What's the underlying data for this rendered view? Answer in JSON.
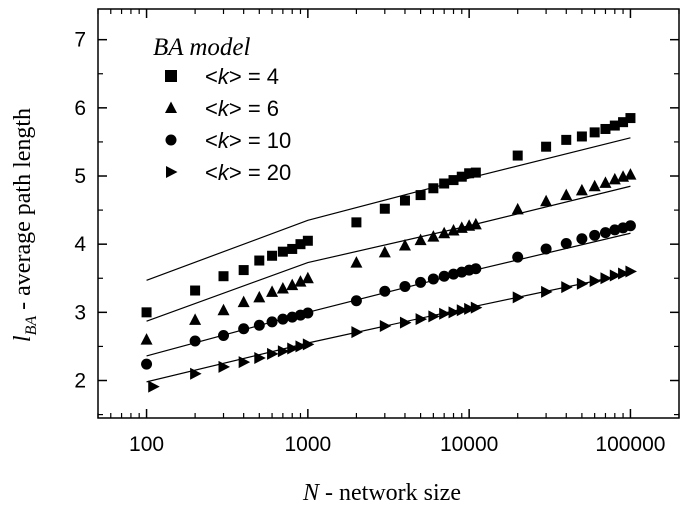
{
  "chart_data": {
    "type": "scatter",
    "title": "",
    "xlabel": "N - network size",
    "xlabel_parts": {
      "symbol": "N",
      "text": " - network size"
    },
    "ylabel": "l_BA - average path length",
    "ylabel_parts": {
      "symbol": "l",
      "subscript": "BA",
      "text": " - average path length"
    },
    "xscale": "log",
    "xlim": [
      50,
      200000
    ],
    "ylim": [
      1.45,
      7.45
    ],
    "x_ticks": [
      {
        "value": 100,
        "label": "100"
      },
      {
        "value": 1000,
        "label": "1000"
      },
      {
        "value": 10000,
        "label": "10000"
      },
      {
        "value": 100000,
        "label": "100000"
      }
    ],
    "y_ticks": [
      {
        "value": 2,
        "label": "2"
      },
      {
        "value": 3,
        "label": "3"
      },
      {
        "value": 4,
        "label": "4"
      },
      {
        "value": 5,
        "label": "5"
      },
      {
        "value": 6,
        "label": "6"
      },
      {
        "value": 7,
        "label": "7"
      }
    ],
    "grid": false,
    "legend": {
      "title": "BA model",
      "placement": "top-left"
    },
    "series": [
      {
        "name": "<k> = 4",
        "label_parts": [
          "<",
          "k",
          "> = 4"
        ],
        "marker": "square",
        "points": [
          [
            100,
            3.0
          ],
          [
            200,
            3.32
          ],
          [
            300,
            3.53
          ],
          [
            400,
            3.62
          ],
          [
            500,
            3.76
          ],
          [
            600,
            3.83
          ],
          [
            700,
            3.89
          ],
          [
            800,
            3.93
          ],
          [
            900,
            4.0
          ],
          [
            1000,
            4.05
          ],
          [
            2000,
            4.32
          ],
          [
            3000,
            4.52
          ],
          [
            4000,
            4.64
          ],
          [
            5000,
            4.72
          ],
          [
            6000,
            4.82
          ],
          [
            7000,
            4.89
          ],
          [
            8000,
            4.94
          ],
          [
            9000,
            4.99
          ],
          [
            10000,
            5.04
          ],
          [
            11000,
            5.05
          ],
          [
            20000,
            5.3
          ],
          [
            30000,
            5.43
          ],
          [
            40000,
            5.53
          ],
          [
            50000,
            5.58
          ],
          [
            60000,
            5.64
          ],
          [
            70000,
            5.69
          ],
          [
            80000,
            5.74
          ],
          [
            90000,
            5.79
          ],
          [
            100000,
            5.85
          ]
        ],
        "fit": [
          [
            100,
            3.47
          ],
          [
            1000,
            4.35
          ],
          [
            10000,
            4.97
          ],
          [
            100000,
            5.56
          ]
        ]
      },
      {
        "name": "<k> = 6",
        "label_parts": [
          "<",
          "k",
          "> = 6"
        ],
        "marker": "triangle-up",
        "points": [
          [
            100,
            2.6
          ],
          [
            200,
            2.89
          ],
          [
            300,
            3.03
          ],
          [
            400,
            3.15
          ],
          [
            500,
            3.22
          ],
          [
            600,
            3.3
          ],
          [
            700,
            3.35
          ],
          [
            800,
            3.4
          ],
          [
            900,
            3.45
          ],
          [
            1000,
            3.5
          ],
          [
            2000,
            3.73
          ],
          [
            3000,
            3.88
          ],
          [
            4000,
            3.98
          ],
          [
            5000,
            4.06
          ],
          [
            6000,
            4.11
          ],
          [
            7000,
            4.16
          ],
          [
            8000,
            4.2
          ],
          [
            9000,
            4.24
          ],
          [
            10000,
            4.27
          ],
          [
            11000,
            4.29
          ],
          [
            20000,
            4.51
          ],
          [
            30000,
            4.63
          ],
          [
            40000,
            4.72
          ],
          [
            50000,
            4.79
          ],
          [
            60000,
            4.85
          ],
          [
            70000,
            4.9
          ],
          [
            80000,
            4.95
          ],
          [
            90000,
            4.99
          ],
          [
            100000,
            5.02
          ]
        ],
        "fit": [
          [
            100,
            2.87
          ],
          [
            1000,
            3.73
          ],
          [
            10000,
            4.27
          ],
          [
            100000,
            4.85
          ]
        ]
      },
      {
        "name": "<k> = 10",
        "label_parts": [
          "<",
          "k",
          "> = 10"
        ],
        "marker": "circle",
        "points": [
          [
            100,
            2.24
          ],
          [
            200,
            2.58
          ],
          [
            300,
            2.66
          ],
          [
            400,
            2.76
          ],
          [
            500,
            2.81
          ],
          [
            600,
            2.86
          ],
          [
            700,
            2.9
          ],
          [
            800,
            2.93
          ],
          [
            900,
            2.96
          ],
          [
            1000,
            2.99
          ],
          [
            2000,
            3.17
          ],
          [
            3000,
            3.31
          ],
          [
            4000,
            3.38
          ],
          [
            5000,
            3.44
          ],
          [
            6000,
            3.49
          ],
          [
            7000,
            3.53
          ],
          [
            8000,
            3.56
          ],
          [
            9000,
            3.59
          ],
          [
            10000,
            3.62
          ],
          [
            11000,
            3.64
          ],
          [
            20000,
            3.81
          ],
          [
            30000,
            3.93
          ],
          [
            40000,
            4.01
          ],
          [
            50000,
            4.08
          ],
          [
            60000,
            4.13
          ],
          [
            70000,
            4.17
          ],
          [
            80000,
            4.21
          ],
          [
            90000,
            4.24
          ],
          [
            100000,
            4.27
          ]
        ],
        "fit": [
          [
            100,
            2.36
          ],
          [
            1000,
            3.0
          ],
          [
            10000,
            3.6
          ],
          [
            100000,
            4.16
          ]
        ]
      },
      {
        "name": "<k> = 20",
        "label_parts": [
          "<",
          "k",
          "> = 20"
        ],
        "marker": "triangle-right",
        "points": [
          [
            110,
            1.91
          ],
          [
            200,
            2.1
          ],
          [
            300,
            2.2
          ],
          [
            400,
            2.27
          ],
          [
            500,
            2.33
          ],
          [
            600,
            2.39
          ],
          [
            700,
            2.43
          ],
          [
            800,
            2.47
          ],
          [
            900,
            2.5
          ],
          [
            1000,
            2.53
          ],
          [
            2000,
            2.71
          ],
          [
            3000,
            2.8
          ],
          [
            4000,
            2.85
          ],
          [
            5000,
            2.9
          ],
          [
            6000,
            2.94
          ],
          [
            7000,
            2.98
          ],
          [
            8000,
            3.0
          ],
          [
            9000,
            3.03
          ],
          [
            10000,
            3.05
          ],
          [
            11000,
            3.07
          ],
          [
            20000,
            3.22
          ],
          [
            30000,
            3.3
          ],
          [
            40000,
            3.37
          ],
          [
            50000,
            3.42
          ],
          [
            60000,
            3.46
          ],
          [
            70000,
            3.5
          ],
          [
            80000,
            3.54
          ],
          [
            90000,
            3.57
          ],
          [
            100000,
            3.6
          ]
        ],
        "fit": [
          [
            100,
            1.98
          ],
          [
            1000,
            2.55
          ],
          [
            10000,
            3.07
          ],
          [
            100000,
            3.57
          ]
        ]
      }
    ]
  }
}
